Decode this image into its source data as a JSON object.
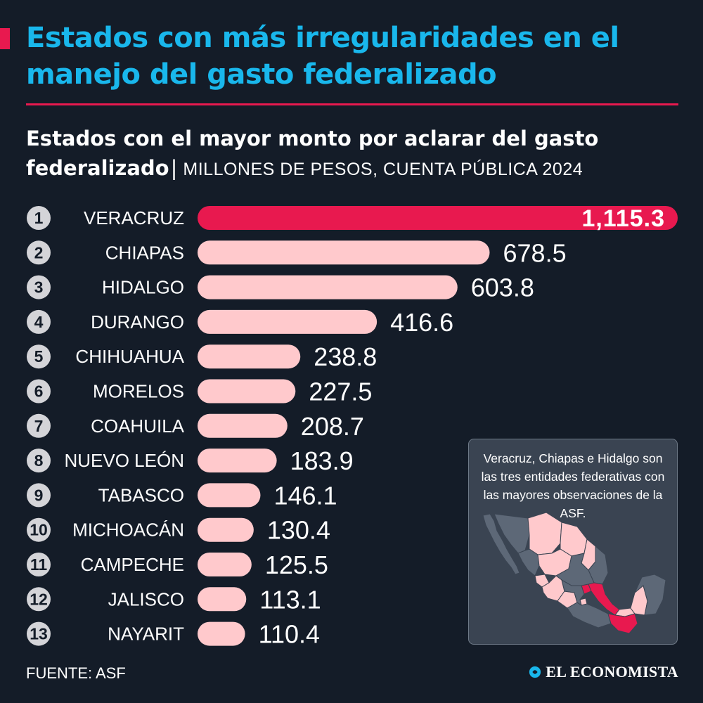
{
  "header": {
    "title": "Estados con más irregularidades en el manejo del gasto federalizado",
    "subtitle_main": "Estados con el mayor monto por aclarar del gasto federalizado",
    "subtitle_separator": "|",
    "subtitle_unit": "MILLONES DE PESOS, CUENTA PÚBLICA 2024"
  },
  "colors": {
    "background": "#141c28",
    "title": "#19b7ec",
    "accent": "#e8194f",
    "bar_default": "#ffc9cc",
    "bar_highlight": "#e8194f"
  },
  "chart_data": {
    "type": "bar",
    "orientation": "horizontal",
    "title": "Estados con el mayor monto por aclarar del gasto federalizado",
    "unit": "MILLONES DE PESOS, CUENTA PÚBLICA 2024",
    "ranks": [
      "1",
      "2",
      "3",
      "4",
      "5",
      "6",
      "7",
      "8",
      "9",
      "10",
      "11",
      "12",
      "13"
    ],
    "categories": [
      "VERACRUZ",
      "CHIAPAS",
      "HIDALGO",
      "DURANGO",
      "CHIHUAHUA",
      "MORELOS",
      "COAHUILA",
      "NUEVO LEÓN",
      "TABASCO",
      "MICHOACÁN",
      "CAMPECHE",
      "JALISCO",
      "NAYARIT"
    ],
    "values": [
      1115.3,
      678.5,
      603.8,
      416.6,
      238.8,
      227.5,
      208.7,
      183.9,
      146.1,
      130.4,
      125.5,
      113.1,
      110.4
    ],
    "value_labels": [
      "1,115.3",
      "678.5",
      "603.8",
      "416.6",
      "238.8",
      "227.5",
      "208.7",
      "183.9",
      "146.1",
      "130.4",
      "125.5",
      "113.1",
      "110.4"
    ],
    "highlight_index": 0,
    "xlim": [
      0,
      1115.3
    ],
    "grid": false,
    "legend": "none"
  },
  "note": {
    "text": "Veracruz, Chiapas e Hidalgo son las tres entidades federativas con las mayores observaciones de la ASF."
  },
  "footer": {
    "source": "FUENTE: ASF",
    "brand": "EL ECONOMISTA"
  }
}
